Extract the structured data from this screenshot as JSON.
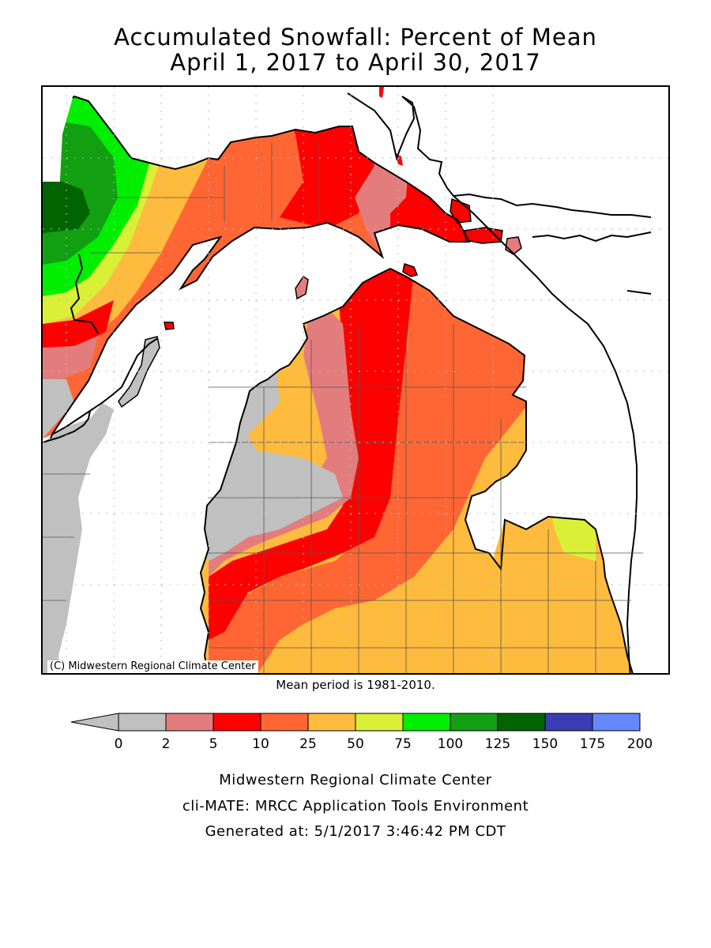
{
  "title": {
    "line1": "Accumulated Snowfall: Percent of Mean",
    "line2": "April 1, 2017 to April 30, 2017"
  },
  "map": {
    "copyright": "(C) Midwestern Regional Climate Center",
    "mean_period": "Mean period is 1981-2010."
  },
  "legend": {
    "bins": [
      {
        "from": 0,
        "to": 2,
        "color": "#c0c0c0"
      },
      {
        "from": 2,
        "to": 5,
        "color": "#e37d7d"
      },
      {
        "from": 5,
        "to": 10,
        "color": "#ff0000"
      },
      {
        "from": 10,
        "to": 25,
        "color": "#ff6633"
      },
      {
        "from": 25,
        "to": 50,
        "color": "#ffbb3d"
      },
      {
        "from": 50,
        "to": 75,
        "color": "#d9f037"
      },
      {
        "from": 75,
        "to": 100,
        "color": "#00ee00"
      },
      {
        "from": 100,
        "to": 125,
        "color": "#12a012"
      },
      {
        "from": 125,
        "to": 150,
        "color": "#006400"
      },
      {
        "from": 150,
        "to": 175,
        "color": "#3b3bb3"
      },
      {
        "from": 175,
        "to": 200,
        "color": "#6688ff"
      }
    ],
    "ticks": [
      "0",
      "2",
      "5",
      "10",
      "25",
      "50",
      "75",
      "100",
      "125",
      "150",
      "175",
      "200"
    ],
    "below_arrow_color": "#c0c0c0"
  },
  "footer": {
    "line1": "Midwestern Regional Climate Center",
    "line2": "cli-MATE: MRCC Application Tools Environment",
    "line3": "Generated at: 5/1/2017 3:46:42 PM CDT"
  }
}
